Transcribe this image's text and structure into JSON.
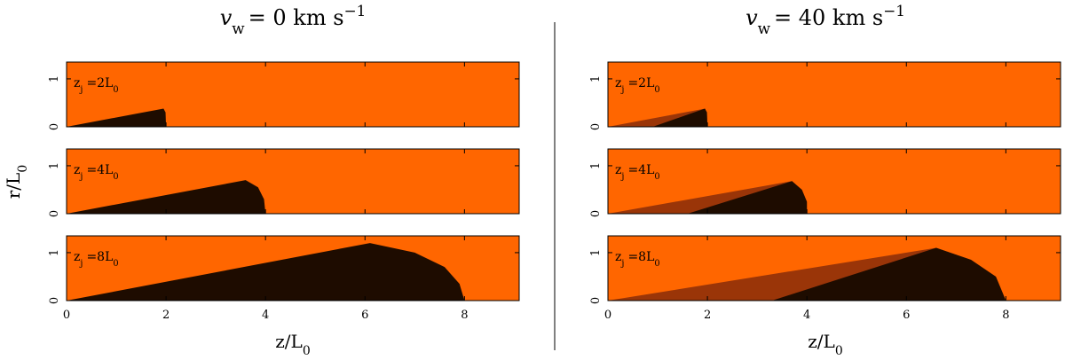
{
  "titles": [
    [
      "v",
      "w",
      "= 0  km  s",
      "−1"
    ],
    [
      "v",
      "w",
      "= 40  km  s",
      "−1"
    ]
  ],
  "ylabel": [
    "r/L",
    "0"
  ],
  "xlabel": [
    "z/L",
    "0"
  ],
  "chart_data": [
    {
      "type": "area",
      "annotation": [
        "z",
        "j",
        "=2L",
        "0"
      ],
      "background": "#ff6600",
      "xlim": [
        0,
        9.1
      ],
      "ylim": [
        0,
        1.35
      ],
      "xticks": [
        0,
        2,
        4,
        6,
        8
      ],
      "yticks": [
        0,
        1
      ],
      "xtick_labels": false,
      "series": [
        {
          "color": "#1e0c00",
          "x": [
            0,
            1.95,
            1.99,
            2.0
          ],
          "values": [
            0,
            0.38,
            0.3,
            0
          ]
        }
      ]
    },
    {
      "type": "area",
      "annotation": [
        "z",
        "j",
        "=4L",
        "0"
      ],
      "background": "#ff6600",
      "xlim": [
        0,
        9.1
      ],
      "ylim": [
        0,
        1.35
      ],
      "xticks": [
        0,
        2,
        4,
        6,
        8
      ],
      "yticks": [
        0,
        1
      ],
      "xtick_labels": false,
      "series": [
        {
          "color": "#1e0c00",
          "x": [
            0,
            3.6,
            3.85,
            3.97,
            4.0
          ],
          "values": [
            0,
            0.7,
            0.55,
            0.3,
            0
          ]
        }
      ]
    },
    {
      "type": "area",
      "annotation": [
        "z",
        "j",
        "=8L",
        "0"
      ],
      "background": "#ff6600",
      "xlim": [
        0,
        9.1
      ],
      "ylim": [
        0,
        1.35
      ],
      "xticks": [
        0,
        2,
        4,
        6,
        8
      ],
      "yticks": [
        0,
        1
      ],
      "xtick_labels": true,
      "series": [
        {
          "color": "#1e0c00",
          "x": [
            0,
            6.1,
            7.0,
            7.6,
            7.9,
            8.0
          ],
          "values": [
            0,
            1.2,
            1.0,
            0.7,
            0.35,
            0
          ]
        }
      ]
    },
    {
      "type": "area",
      "annotation": [
        "z",
        "j",
        "=2L",
        "0"
      ],
      "background": "#ff6600",
      "xlim": [
        0,
        9.1
      ],
      "ylim": [
        0,
        1.35
      ],
      "xticks": [
        0,
        2,
        4,
        6,
        8
      ],
      "yticks": [
        0,
        1
      ],
      "xtick_labels": false,
      "series": [
        {
          "color": "#9a3508",
          "x": [
            0,
            1.95,
            1.99,
            2.0
          ],
          "values": [
            0,
            0.38,
            0.3,
            0
          ]
        },
        {
          "color": "#1e0c00",
          "x": [
            0.9,
            1.95,
            1.99,
            2.0
          ],
          "values": [
            0,
            0.38,
            0.3,
            0
          ]
        }
      ]
    },
    {
      "type": "area",
      "annotation": [
        "z",
        "j",
        "=4L",
        "0"
      ],
      "background": "#ff6600",
      "xlim": [
        0,
        9.1
      ],
      "ylim": [
        0,
        1.35
      ],
      "xticks": [
        0,
        2,
        4,
        6,
        8
      ],
      "yticks": [
        0,
        1
      ],
      "xtick_labels": false,
      "series": [
        {
          "color": "#9a3508",
          "x": [
            0,
            3.7,
            3.9,
            4.0,
            4.0
          ],
          "values": [
            0,
            0.68,
            0.5,
            0.25,
            0
          ]
        },
        {
          "color": "#1e0c00",
          "x": [
            1.6,
            3.7,
            3.9,
            4.0,
            4.0
          ],
          "values": [
            0,
            0.68,
            0.5,
            0.25,
            0
          ]
        }
      ]
    },
    {
      "type": "area",
      "annotation": [
        "z",
        "j",
        "=8L",
        "0"
      ],
      "background": "#ff6600",
      "xlim": [
        0,
        9.1
      ],
      "ylim": [
        0,
        1.35
      ],
      "xticks": [
        0,
        2,
        4,
        6,
        8
      ],
      "yticks": [
        0,
        1
      ],
      "xtick_labels": true,
      "series": [
        {
          "color": "#9a3508",
          "x": [
            0,
            6.6,
            7.3,
            7.8,
            8.0
          ],
          "values": [
            0,
            1.1,
            0.85,
            0.5,
            0
          ]
        },
        {
          "color": "#1e0c00",
          "x": [
            3.3,
            6.6,
            7.3,
            7.8,
            8.0
          ],
          "values": [
            0,
            1.1,
            0.85,
            0.5,
            0
          ]
        }
      ]
    }
  ]
}
